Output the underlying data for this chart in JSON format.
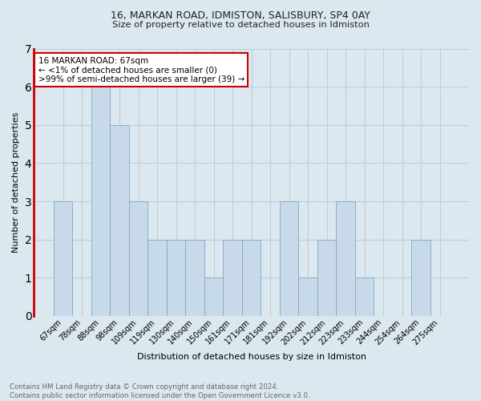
{
  "title1": "16, MARKAN ROAD, IDMISTON, SALISBURY, SP4 0AY",
  "title2": "Size of property relative to detached houses in Idmiston",
  "xlabel": "Distribution of detached houses by size in Idmiston",
  "ylabel": "Number of detached properties",
  "categories": [
    "67sqm",
    "78sqm",
    "88sqm",
    "98sqm",
    "109sqm",
    "119sqm",
    "130sqm",
    "140sqm",
    "150sqm",
    "161sqm",
    "171sqm",
    "181sqm",
    "192sqm",
    "202sqm",
    "212sqm",
    "223sqm",
    "233sqm",
    "244sqm",
    "254sqm",
    "264sqm",
    "275sqm"
  ],
  "values": [
    3,
    0,
    6,
    5,
    3,
    2,
    2,
    2,
    1,
    2,
    2,
    0,
    3,
    1,
    2,
    3,
    1,
    0,
    0,
    2,
    0
  ],
  "bar_color": "#c8d9ea",
  "bar_edge_color": "#7aaac8",
  "highlight_edge_color": "#cc0000",
  "annotation_text": "16 MARKAN ROAD: 67sqm\n← <1% of detached houses are smaller (0)\n>99% of semi-detached houses are larger (39) →",
  "annotation_box_color": "white",
  "annotation_box_edge_color": "#cc0000",
  "ylim": [
    0,
    7
  ],
  "yticks": [
    0,
    1,
    2,
    3,
    4,
    5,
    6,
    7
  ],
  "grid_color": "#c0cdd8",
  "bg_color": "#dce8f0",
  "footnote": "Contains HM Land Registry data © Crown copyright and database right 2024.\nContains public sector information licensed under the Open Government Licence v3.0."
}
